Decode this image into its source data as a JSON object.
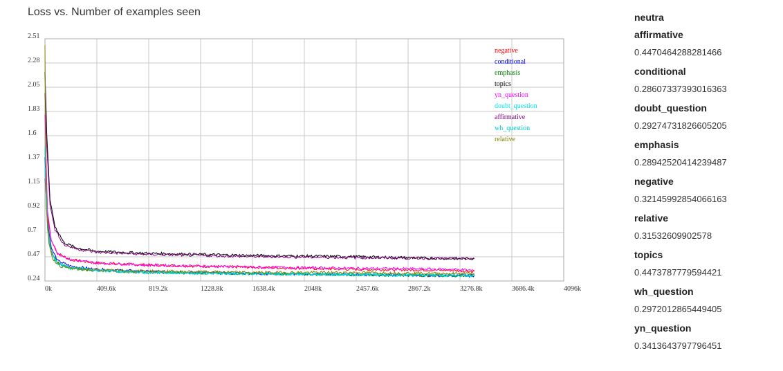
{
  "title": "Loss vs. Number of examples seen",
  "panel": {
    "title": "neutra",
    "items": [
      {
        "name": "affirmative",
        "value": "0.4470464288281466"
      },
      {
        "name": "conditional",
        "value": "0.28607337393016363"
      },
      {
        "name": "doubt_question",
        "value": "0.29274731826605205"
      },
      {
        "name": "emphasis",
        "value": "0.28942520414239487"
      },
      {
        "name": "negative",
        "value": "0.32145992854066163"
      },
      {
        "name": "relative",
        "value": "0.31532609902578"
      },
      {
        "name": "topics",
        "value": "0.4473787779594421"
      },
      {
        "name": "wh_question",
        "value": "0.2972012865449405"
      },
      {
        "name": "yn_question",
        "value": "0.3413643797796451"
      }
    ]
  },
  "chart_data": {
    "type": "line",
    "title": "Loss vs. Number of examples seen",
    "xlabel": "",
    "ylabel": "",
    "xlim": [
      0,
      4096
    ],
    "ylim": [
      0.24,
      2.51
    ],
    "grid": true,
    "legend_position": "top-right",
    "x_ticks": [
      "0k",
      "409.6k",
      "819.2k",
      "1228.8k",
      "1638.4k",
      "2048k",
      "2457.6k",
      "2867.2k",
      "3276.8k",
      "3686.4k",
      "4096k"
    ],
    "y_ticks": [
      "0.24",
      "0.47",
      "0.7",
      "0.92",
      "1.15",
      "1.37",
      "1.6",
      "1.83",
      "2.05",
      "2.28",
      "2.51"
    ],
    "series": [
      {
        "name": "negative",
        "color": "#ff0000",
        "x": [
          0,
          20,
          50,
          100,
          200,
          400,
          800,
          1600,
          2400,
          3200,
          3390
        ],
        "y": [
          1.2,
          0.85,
          0.62,
          0.5,
          0.44,
          0.41,
          0.39,
          0.37,
          0.35,
          0.34,
          0.33
        ]
      },
      {
        "name": "conditional",
        "color": "#0000ff",
        "x": [
          0,
          20,
          50,
          100,
          200,
          400,
          800,
          1600,
          2400,
          3200,
          3390
        ],
        "y": [
          1.4,
          0.8,
          0.55,
          0.43,
          0.38,
          0.35,
          0.33,
          0.31,
          0.3,
          0.29,
          0.29
        ]
      },
      {
        "name": "emphasis",
        "color": "#008000",
        "x": [
          0,
          20,
          50,
          100,
          200,
          400,
          800,
          1600,
          2400,
          3200,
          3390
        ],
        "y": [
          1.5,
          0.78,
          0.52,
          0.41,
          0.36,
          0.34,
          0.32,
          0.31,
          0.3,
          0.29,
          0.29
        ]
      },
      {
        "name": "topics",
        "color": "#000000",
        "x": [
          0,
          15,
          40,
          80,
          150,
          250,
          400,
          800,
          1600,
          2400,
          3200,
          3390
        ],
        "y": [
          2.2,
          1.6,
          1.0,
          0.75,
          0.6,
          0.55,
          0.52,
          0.5,
          0.48,
          0.47,
          0.45,
          0.45
        ]
      },
      {
        "name": "yn_question",
        "color": "#ff00ff",
        "x": [
          0,
          20,
          50,
          100,
          200,
          400,
          800,
          1600,
          2400,
          3200,
          3390
        ],
        "y": [
          1.8,
          0.9,
          0.62,
          0.5,
          0.44,
          0.41,
          0.39,
          0.37,
          0.36,
          0.35,
          0.34
        ]
      },
      {
        "name": "doubt_question",
        "color": "#00e5e5",
        "x": [
          0,
          20,
          50,
          100,
          200,
          400,
          800,
          1600,
          2400,
          3200,
          3390
        ],
        "y": [
          1.5,
          0.76,
          0.5,
          0.4,
          0.36,
          0.34,
          0.32,
          0.31,
          0.3,
          0.29,
          0.29
        ]
      },
      {
        "name": "affirmative",
        "color": "#800080",
        "x": [
          0,
          15,
          40,
          80,
          150,
          250,
          400,
          800,
          1600,
          2400,
          3200,
          3390
        ],
        "y": [
          2.0,
          1.5,
          0.95,
          0.72,
          0.58,
          0.54,
          0.51,
          0.49,
          0.47,
          0.46,
          0.45,
          0.45
        ]
      },
      {
        "name": "wh_question",
        "color": "#00cccc",
        "x": [
          0,
          20,
          50,
          100,
          200,
          400,
          800,
          1600,
          2400,
          3200,
          3390
        ],
        "y": [
          1.3,
          0.72,
          0.5,
          0.41,
          0.37,
          0.34,
          0.32,
          0.31,
          0.3,
          0.3,
          0.3
        ]
      },
      {
        "name": "relative",
        "color": "#808000",
        "x": [
          0,
          10,
          30,
          60,
          120,
          250,
          500,
          1000,
          1600,
          2400,
          3200,
          3390
        ],
        "y": [
          2.45,
          0.95,
          0.6,
          0.45,
          0.38,
          0.35,
          0.34,
          0.33,
          0.32,
          0.32,
          0.31,
          0.31
        ]
      }
    ]
  }
}
